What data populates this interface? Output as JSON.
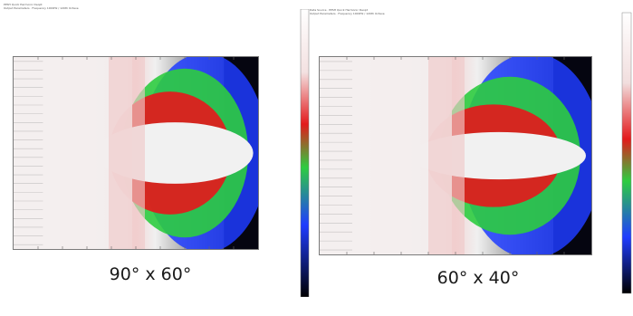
{
  "panels": [
    {
      "id": "panel-1",
      "header_lines": [
        "PPSH Quick Harmonic Deopt",
        "Output Parameters · Frequency 1000Hz / 120th Octave"
      ],
      "caption": "90° x 60°",
      "colorbar": false
    },
    {
      "id": "panel-2",
      "header_lines": [
        "Data Source · PPSH Quick Harmonic Deopt",
        "Output Parameters · Frequency 1000Hz / 120th Octave"
      ],
      "caption": "60° x 40°",
      "colorbar": true
    }
  ],
  "colors": {
    "white": "#f0f0f0",
    "red": "#e31a1c",
    "green": "#2ecc40",
    "blue": "#1f3cff",
    "black": "#000000"
  }
}
